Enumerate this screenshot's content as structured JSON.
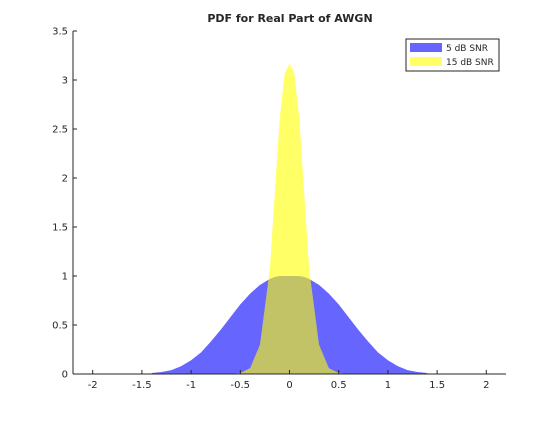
{
  "chart_data": {
    "type": "area",
    "title": "PDF for Real Part of AWGN",
    "xlabel": "",
    "ylabel": "",
    "xlim": [
      -2.2,
      2.2
    ],
    "ylim": [
      0,
      3.5
    ],
    "x_ticks": [
      "-2",
      "-1.5",
      "-1",
      "-0.5",
      "0",
      "0.5",
      "1",
      "1.5",
      "2"
    ],
    "x_tick_values": [
      -2,
      -1.5,
      -1,
      -0.5,
      0,
      0.5,
      1,
      1.5,
      2
    ],
    "y_ticks": [
      "0",
      "0.5",
      "1",
      "1.5",
      "2",
      "2.5",
      "3",
      "3.5"
    ],
    "y_tick_values": [
      0,
      0.5,
      1,
      1.5,
      2,
      2.5,
      3,
      3.5
    ],
    "grid": false,
    "legend_position": "top-right",
    "x": [
      -1.4,
      -1.3,
      -1.2,
      -1.1,
      -1.0,
      -0.9,
      -0.8,
      -0.7,
      -0.6,
      -0.5,
      -0.4,
      -0.3,
      -0.2,
      -0.15,
      -0.1,
      -0.05,
      0,
      0.05,
      0.1,
      0.15,
      0.2,
      0.3,
      0.4,
      0.5,
      0.6,
      0.7,
      0.8,
      0.9,
      1.0,
      1.1,
      1.2,
      1.3,
      1.4
    ],
    "series": [
      {
        "name": "5 dB SNR",
        "color": "#0000ff",
        "opacity": 0.6,
        "values": [
          0.01,
          0.02,
          0.04,
          0.08,
          0.14,
          0.22,
          0.33,
          0.45,
          0.58,
          0.71,
          0.82,
          0.91,
          0.97,
          0.99,
          1.0,
          1.0,
          1.0,
          1.0,
          1.0,
          0.99,
          0.97,
          0.91,
          0.82,
          0.71,
          0.58,
          0.45,
          0.33,
          0.22,
          0.14,
          0.08,
          0.04,
          0.02,
          0.01
        ]
      },
      {
        "name": "15 dB SNR",
        "color": "#ffff00",
        "opacity": 0.6,
        "values": [
          0,
          0,
          0,
          0,
          0,
          0,
          0,
          0,
          0,
          0.01,
          0.06,
          0.3,
          1.07,
          1.83,
          2.6,
          3.06,
          3.17,
          3.06,
          2.6,
          1.83,
          1.07,
          0.3,
          0.06,
          0.01,
          0,
          0,
          0,
          0,
          0,
          0,
          0,
          0,
          0
        ]
      }
    ]
  }
}
